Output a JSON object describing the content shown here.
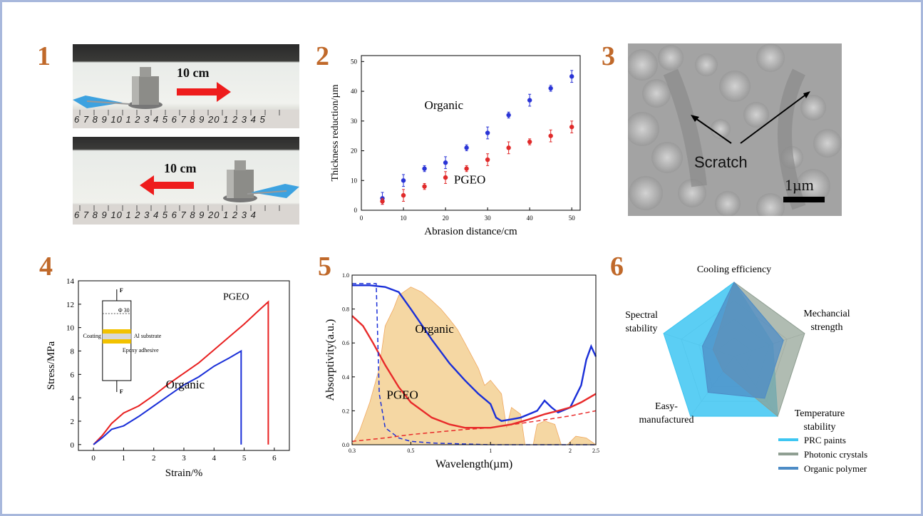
{
  "panel_numbers": [
    "1",
    "2",
    "3",
    "4",
    "5",
    "6"
  ],
  "photos": {
    "top_label": "10 cm",
    "bottom_label": "10 cm",
    "ruler_top": "6 7 8 9 10 1 2 3 4 5 6 7 8 9 20 1 2 3 4 5",
    "ruler_bottom": "6 7 8 9 10 1 2 3 4 5 6 7 8 9 20 1 2 3 4"
  },
  "sem": {
    "scratch_label": "Scratch",
    "scale_label": "1µm"
  },
  "chart_data": [
    {
      "id": "abrasion",
      "type": "scatter",
      "xlabel": "Abrasion distance/cm",
      "ylabel": "Thickness reduction/µm",
      "xlim": [
        0,
        52
      ],
      "ylim": [
        0,
        52
      ],
      "xticks": [
        0,
        10,
        20,
        30,
        40,
        50
      ],
      "yticks": [
        0,
        10,
        20,
        30,
        40,
        50
      ],
      "series": [
        {
          "name": "Organic",
          "color": "#2a34d6",
          "x": [
            5,
            10,
            15,
            20,
            25,
            30,
            35,
            40,
            45,
            50
          ],
          "y": [
            4,
            10,
            14,
            16,
            21,
            26,
            32,
            37,
            41,
            45
          ],
          "err": [
            2,
            2,
            1,
            2,
            1,
            2,
            1,
            2,
            1,
            2
          ]
        },
        {
          "name": "PGEO",
          "color": "#e02a2a",
          "x": [
            5,
            10,
            15,
            20,
            25,
            30,
            35,
            40,
            45,
            50
          ],
          "y": [
            3,
            5,
            8,
            11,
            14,
            17,
            21,
            23,
            25,
            28
          ],
          "err": [
            1,
            2,
            1,
            2,
            1,
            2,
            2,
            1,
            2,
            2
          ]
        }
      ]
    },
    {
      "id": "stress_strain",
      "type": "line",
      "xlabel": "Strain/%",
      "ylabel": "Stress/MPa",
      "xlim": [
        -0.5,
        6.5
      ],
      "ylim": [
        -0.5,
        14
      ],
      "xticks": [
        0,
        1,
        2,
        3,
        4,
        5,
        6
      ],
      "yticks": [
        0,
        2,
        4,
        6,
        8,
        10,
        12,
        14
      ],
      "series": [
        {
          "name": "PGEO",
          "color": "#e82020",
          "x": [
            0,
            0.3,
            0.6,
            1.0,
            1.5,
            2.0,
            2.5,
            3.0,
            3.5,
            4.0,
            4.5,
            5.0,
            5.5,
            5.8,
            5.8
          ],
          "y": [
            0,
            0.8,
            1.8,
            2.7,
            3.3,
            4.2,
            5.2,
            6.1,
            7.0,
            8.1,
            9.2,
            10.3,
            11.5,
            12.2,
            0
          ]
        },
        {
          "name": "Organic",
          "color": "#1a2fd8",
          "x": [
            0,
            0.3,
            0.6,
            1.0,
            1.5,
            2.0,
            2.5,
            3.0,
            3.5,
            4.0,
            4.5,
            4.9,
            4.9
          ],
          "y": [
            0,
            0.6,
            1.3,
            1.6,
            2.4,
            3.3,
            4.2,
            5.1,
            5.8,
            6.7,
            7.4,
            8.0,
            0
          ]
        }
      ],
      "inset": {
        "top": "F",
        "bottom": "F",
        "diameter": "Φ 30",
        "coating": "Coating",
        "substrate": "Al substrate",
        "adhesive": "Epoxy adhesive"
      }
    },
    {
      "id": "absorptivity",
      "type": "line",
      "xlabel": "Wavelength(µm)",
      "ylabel": "Absorptivity(a.u.)",
      "xscale": "log",
      "xlim": [
        0.3,
        2.5
      ],
      "ylim": [
        0,
        1.0
      ],
      "xticks": [
        0.3,
        0.5,
        1,
        2,
        2.5
      ],
      "xticklabels": [
        "0.3",
        "0.5",
        "1",
        "2",
        "2.5"
      ],
      "yticks": [
        0,
        0.2,
        0.4,
        0.6,
        0.8,
        1.0
      ],
      "yticklabels": [
        "0.0",
        "0.2",
        "0.4",
        "0.6",
        "0.8",
        "1.0"
      ],
      "series": [
        {
          "name": "Organic",
          "color": "#1a2fd8",
          "x": [
            0.3,
            0.35,
            0.4,
            0.45,
            0.5,
            0.6,
            0.7,
            0.8,
            0.9,
            1.0,
            1.05,
            1.1,
            1.2,
            1.3,
            1.5,
            1.6,
            1.7,
            1.8,
            2.0,
            2.2,
            2.3,
            2.4,
            2.5
          ],
          "y": [
            0.94,
            0.94,
            0.93,
            0.9,
            0.8,
            0.62,
            0.48,
            0.38,
            0.3,
            0.24,
            0.16,
            0.14,
            0.15,
            0.16,
            0.2,
            0.26,
            0.22,
            0.19,
            0.22,
            0.35,
            0.5,
            0.58,
            0.52
          ]
        },
        {
          "name": "PGEO",
          "color": "#e82a2a",
          "x": [
            0.3,
            0.33,
            0.36,
            0.4,
            0.45,
            0.5,
            0.6,
            0.7,
            0.8,
            1.0,
            1.2,
            1.4,
            1.6,
            1.8,
            2.0,
            2.2,
            2.5
          ],
          "y": [
            0.76,
            0.7,
            0.6,
            0.47,
            0.34,
            0.25,
            0.16,
            0.12,
            0.1,
            0.1,
            0.12,
            0.15,
            0.18,
            0.2,
            0.22,
            0.25,
            0.3
          ]
        },
        {
          "name": "Organic reference",
          "color": "#1a2fd8",
          "style": "dashed",
          "x": [
            0.3,
            0.37,
            0.38,
            0.4,
            0.45,
            0.5,
            0.6,
            1.0,
            2.5
          ],
          "y": [
            0.95,
            0.95,
            0.3,
            0.1,
            0.04,
            0.02,
            0.01,
            0.0,
            0.0
          ]
        },
        {
          "name": "PGEO reference",
          "color": "#e82a2a",
          "style": "dashed",
          "x": [
            0.3,
            0.4,
            0.5,
            0.8,
            1.0,
            1.5,
            2.0,
            2.5
          ],
          "y": [
            0.02,
            0.04,
            0.06,
            0.09,
            0.1,
            0.14,
            0.17,
            0.2
          ]
        },
        {
          "name": "Solar spectrum",
          "color": "#f5d7a3",
          "type": "area",
          "x": [
            0.3,
            0.32,
            0.35,
            0.38,
            0.4,
            0.43,
            0.45,
            0.5,
            0.55,
            0.6,
            0.65,
            0.7,
            0.75,
            0.8,
            0.9,
            0.95,
            1.0,
            1.1,
            1.15,
            1.2,
            1.3,
            1.35,
            1.45,
            1.5,
            1.6,
            1.75,
            1.85,
            1.95,
            2.1,
            2.3,
            2.5
          ],
          "y": [
            0.0,
            0.08,
            0.25,
            0.45,
            0.7,
            0.8,
            0.88,
            0.93,
            0.9,
            0.85,
            0.8,
            0.74,
            0.68,
            0.6,
            0.45,
            0.35,
            0.38,
            0.3,
            0.1,
            0.22,
            0.18,
            0.0,
            0.0,
            0.12,
            0.14,
            0.12,
            0.0,
            0.0,
            0.05,
            0.04,
            0.0
          ]
        }
      ],
      "annotations": [
        "Organic",
        "PGEO"
      ]
    },
    {
      "id": "radar",
      "type": "radar",
      "axes": [
        "Cooling efficiency",
        "Mechancial strength",
        "Temperature stability",
        "Easy-manufactured",
        "Spectral stability"
      ],
      "axis_labels_lines": [
        [
          "Cooling efficiency"
        ],
        [
          "Mechancial",
          "strength"
        ],
        [
          "Temperature",
          "stability"
        ],
        [
          "Easy-",
          "manufactured"
        ],
        [
          "Spectral",
          "stability"
        ]
      ],
      "series": [
        {
          "name": "PRC paints",
          "color": "#3ec6f2",
          "values": [
            1.0,
            0.55,
            1.0,
            1.0,
            1.0
          ]
        },
        {
          "name": "Photonic crystals",
          "color": "#8f9f92",
          "values": [
            1.0,
            1.0,
            1.0,
            0.25,
            0.3
          ]
        },
        {
          "name": "Organic polymer",
          "color": "#4d8cc6",
          "values": [
            1.0,
            0.7,
            0.7,
            0.6,
            0.45
          ]
        }
      ]
    }
  ]
}
